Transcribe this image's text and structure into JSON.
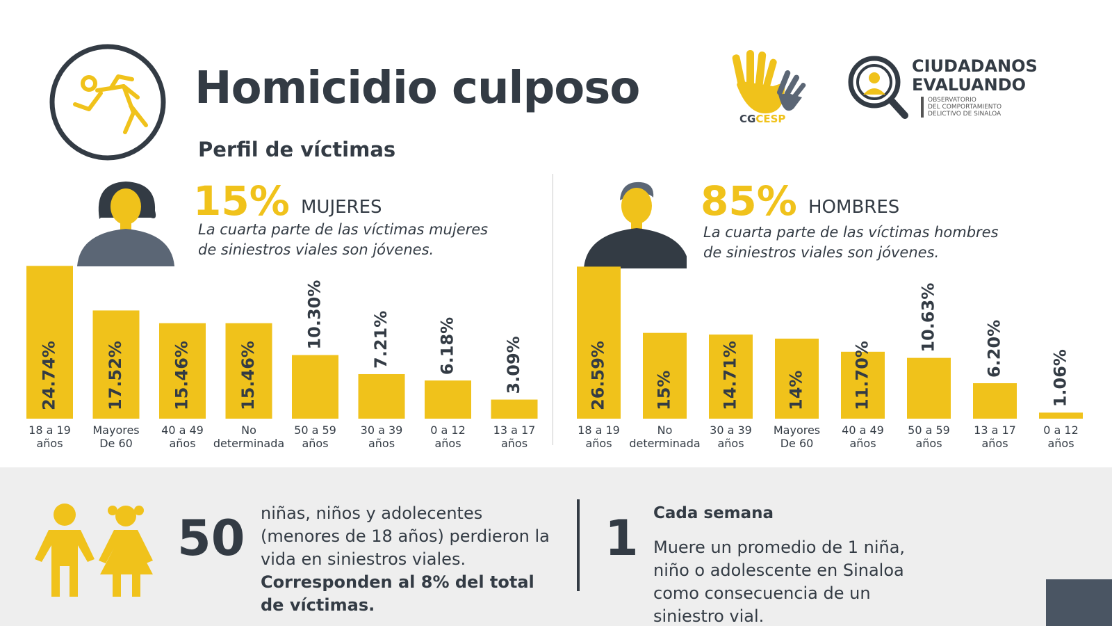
{
  "header": {
    "title": "Homicidio culposo",
    "subtitle": "Perfil de víctimas",
    "logo_cg_main": "CG",
    "logo_cg_accent": "CESP",
    "logo_ce_line1": "CIUDADANOS",
    "logo_ce_line2": "EVALUANDO",
    "logo_ce_sub1": "OBSERVATORIO",
    "logo_ce_sub2": "DEL COMPORTAMIENTO",
    "logo_ce_sub3": "DELICTIVO DE SINALOA"
  },
  "women": {
    "percent": "15%",
    "label": "MUJERES",
    "description": "La cuarta parte de las víctimas mujeres de siniestros viales son jóvenes."
  },
  "men": {
    "percent": "85%",
    "label": "HOMBRES",
    "description": "La cuarta parte de las víctimas hombres de siniestros viales son jóvenes."
  },
  "colors": {
    "accent": "#f0c21b",
    "dark": "#333b44",
    "slate": "#5b6675",
    "band": "#eeeeee"
  },
  "chart_data": [
    {
      "type": "bar",
      "title": "MUJERES",
      "categories": [
        "18 a 19 años",
        "Mayores De 60",
        "40 a 49 años",
        "No determinada",
        "50 a 59 años",
        "30 a 39 años",
        "0 a 12 años",
        "13 a 17 años"
      ],
      "category_lines": [
        [
          "18 a 19",
          "años"
        ],
        [
          "Mayores",
          "De 60"
        ],
        [
          "40 a 49",
          "años"
        ],
        [
          "No",
          "determinada"
        ],
        [
          "50 a 59",
          "años"
        ],
        [
          "30 a 39",
          "años"
        ],
        [
          "0 a 12",
          "años"
        ],
        [
          "13 a 17",
          "años"
        ]
      ],
      "values": [
        24.74,
        17.52,
        15.46,
        15.46,
        10.3,
        7.21,
        6.18,
        3.09
      ],
      "labels": [
        "24.74%",
        "17.52%",
        "15.46%",
        "15.46%",
        "10.30%",
        "7.21%",
        "6.18%",
        "3.09%"
      ],
      "ylim": [
        0,
        25
      ]
    },
    {
      "type": "bar",
      "title": "HOMBRES",
      "categories": [
        "18 a 19 años",
        "No determinada",
        "30 a 39 años",
        "Mayores De 60",
        "40 a 49 años",
        "50 a 59 años",
        "13 a 17 años",
        "0 a 12 años"
      ],
      "category_lines": [
        [
          "18 a 19",
          "años"
        ],
        [
          "No",
          "determinada"
        ],
        [
          "30 a 39",
          "años"
        ],
        [
          "Mayores",
          "De 60"
        ],
        [
          "40 a 49",
          "años"
        ],
        [
          "50 a 59",
          "años"
        ],
        [
          "13 a 17",
          "años"
        ],
        [
          "0 a 12",
          "años"
        ]
      ],
      "values": [
        26.59,
        15,
        14.71,
        14,
        11.7,
        10.63,
        6.2,
        1.06
      ],
      "labels": [
        "26.59%",
        "15%",
        "14.71%",
        "14%",
        "11.70%",
        "10.63%",
        "6.20%",
        "1.06%"
      ],
      "ylim": [
        0,
        27
      ]
    }
  ],
  "children": {
    "number": "50",
    "text_plain": "niñas, niños y adolecentes (menores de 18 años) perdieron la vida en siniestros viales.",
    "text_bold": "Corresponden al 8% del total de víctimas.",
    "week_number": "1",
    "week_title": "Cada semana",
    "week_text": "Muere un promedio de 1 niña, niño o adolescente en Sinaloa como consecuencia de un siniestro vial."
  }
}
